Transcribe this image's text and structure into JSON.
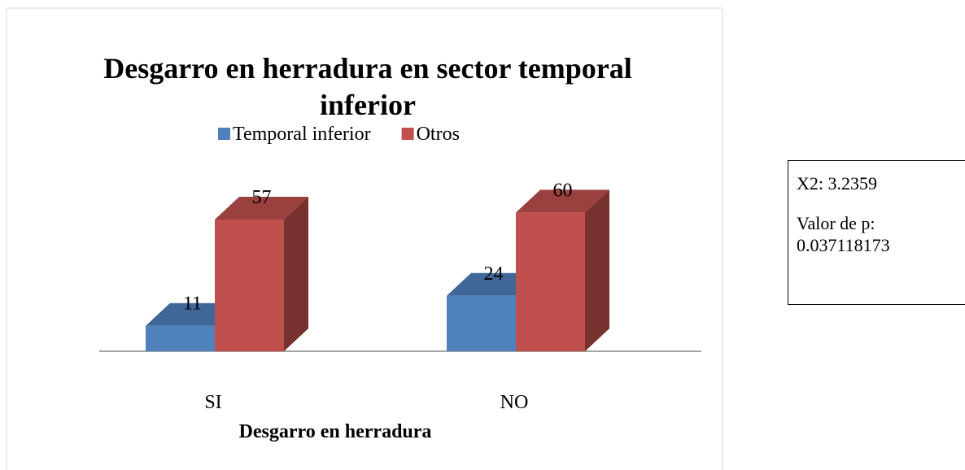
{
  "chart_data": {
    "type": "bar3d",
    "title": "Desgarro en herradura en sector temporal inferior",
    "x_label": "Desgarro en herradura",
    "categories": [
      "SI",
      "NO"
    ],
    "series": [
      {
        "name": "Temporal inferior",
        "color": "#4f81bd",
        "values": [
          11,
          24
        ]
      },
      {
        "name": "Otros",
        "color": "#c0504d",
        "values": [
          57,
          60
        ]
      }
    ],
    "ylim": [
      0,
      70
    ],
    "legend": "top",
    "annotations": [
      "X2: 3.2359",
      "Valor de p: 0.037118173"
    ]
  }
}
